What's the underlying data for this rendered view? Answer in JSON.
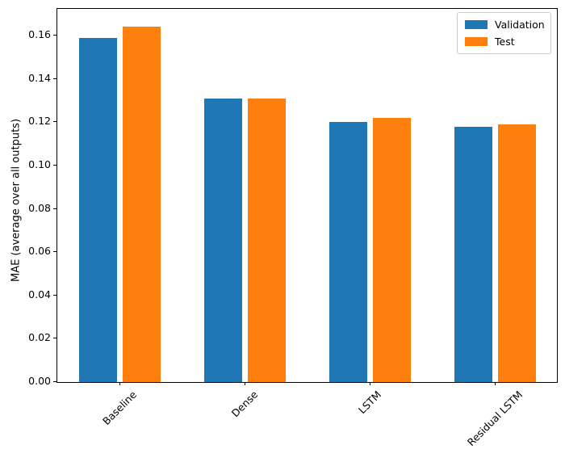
{
  "chart_data": {
    "type": "bar",
    "categories": [
      "Baseline",
      "Dense",
      "LSTM",
      "Residual LSTM"
    ],
    "series": [
      {
        "name": "Validation",
        "color": "#1f77b4",
        "values": [
          0.159,
          0.131,
          0.12,
          0.118
        ]
      },
      {
        "name": "Test",
        "color": "#ff7f0e",
        "values": [
          0.164,
          0.131,
          0.122,
          0.119
        ]
      }
    ],
    "title": "",
    "xlabel": "",
    "ylabel": "MAE (average over all outputs)",
    "ylim": [
      0,
      0.172
    ],
    "yticks": [
      0,
      0.02,
      0.04,
      0.06,
      0.08,
      0.1,
      0.12,
      0.14,
      0.16
    ],
    "ytick_labels": [
      "0.00",
      "0.02",
      "0.04",
      "0.06",
      "0.08",
      "0.10",
      "0.12",
      "0.14",
      "0.16"
    ],
    "xtick_rotation": 45,
    "grid": false,
    "legend": {
      "position": "upper right",
      "entries": [
        "Validation",
        "Test"
      ]
    },
    "background": "#ffffff",
    "spine_color": "#000000"
  }
}
